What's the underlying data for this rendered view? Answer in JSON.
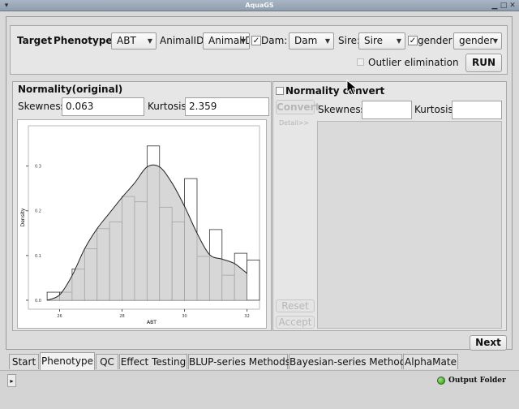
{
  "window": {
    "title": "AquaGS"
  },
  "target_group": {
    "heading": "Target",
    "phenotype_label": "Phenotype:",
    "phenotype_value": "ABT",
    "animal_label": "AnimalID:",
    "animal_value": "AnimalID",
    "dam_checked": true,
    "dam_label": "Dam:",
    "dam_value": "Dam",
    "sire_label": "Sire:",
    "sire_value": "Sire",
    "gender_checked": true,
    "gender_label": "gender",
    "gender_value": "gender",
    "outlier_label": "Outlier elimination",
    "run_label": "RUN"
  },
  "normality_original": {
    "heading": "Normality(original)",
    "skewness_label": "Skewness:",
    "skewness_value": "0.063",
    "kurtosis_label": "Kurtosis:",
    "kurtosis_value": "2.359"
  },
  "normality_convert": {
    "heading": "Normality convert",
    "convert_label": "Convert",
    "detail_label": "Detail>>",
    "skewness_label": "Skewness:",
    "skewness_value": "",
    "kurtosis_label": "Kurtosis:",
    "kurtosis_value": "",
    "reset_label": "Reset",
    "accept_label": "Accept"
  },
  "next_label": "Next",
  "tabs": [
    {
      "label": "Start"
    },
    {
      "label": "Phenotype",
      "active": true
    },
    {
      "label": "QC"
    },
    {
      "label": "Effect Testing"
    },
    {
      "label": "BLUP-series Methods"
    },
    {
      "label": "Bayesian-series Methods"
    },
    {
      "label": "AlphaMate"
    }
  ],
  "status": {
    "output_folder_label": "Output Folder",
    "expand_glyph": "▸"
  },
  "chart_data": {
    "type": "bar",
    "xlabel": "ABT",
    "ylabel": "Density",
    "x_ticks": [
      "26",
      "28",
      "30",
      "32"
    ],
    "y_ticks": [
      "0.0",
      "0.1",
      "0.2",
      "0.3"
    ],
    "xlim": [
      25.0,
      32.4
    ],
    "ylim": [
      -0.02,
      0.39
    ],
    "bin_width": 0.4,
    "bin_starts": [
      25.6,
      26.0,
      26.4,
      26.8,
      27.2,
      27.6,
      28.0,
      28.4,
      28.8,
      29.2,
      29.6,
      30.0,
      30.4,
      30.8,
      31.2,
      31.6,
      32.0
    ],
    "histogram": [
      0.018,
      0.018,
      0.07,
      0.115,
      0.16,
      0.175,
      0.232,
      0.22,
      0.345,
      0.208,
      0.175,
      0.272,
      0.098,
      0.158,
      0.056,
      0.105,
      0.09
    ],
    "density_x": [
      25.6,
      26.0,
      26.4,
      26.8,
      27.2,
      27.6,
      28.0,
      28.4,
      28.8,
      29.2,
      29.6,
      30.0,
      30.4,
      30.8,
      31.2,
      31.6,
      32.0
    ],
    "density_y": [
      0.0,
      0.012,
      0.055,
      0.115,
      0.16,
      0.195,
      0.23,
      0.262,
      0.298,
      0.298,
      0.262,
      0.21,
      0.15,
      0.102,
      0.092,
      0.082,
      0.06
    ]
  }
}
